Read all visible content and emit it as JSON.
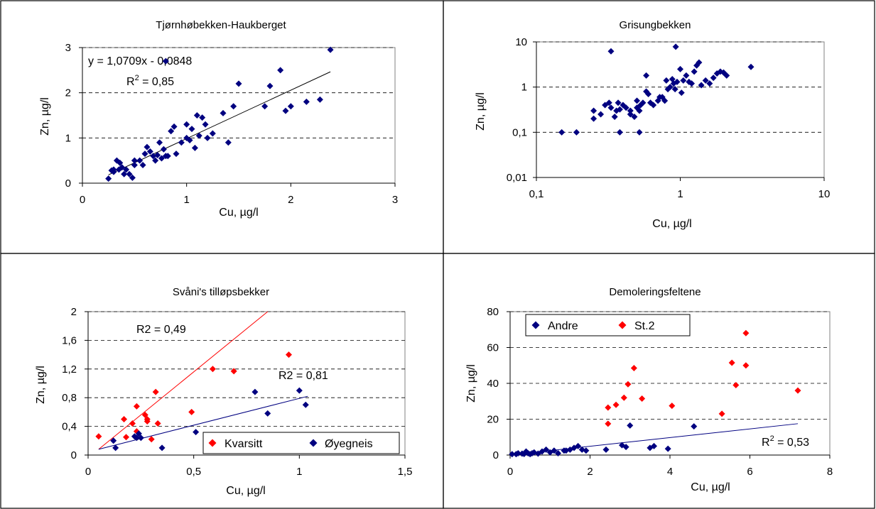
{
  "chart_data": [
    {
      "type": "scatter",
      "title": "Tjørnhøbekken-Haukberget",
      "xlabel": "Cu, µg/l",
      "ylabel": "Zn, µg/l",
      "xlim": [
        0,
        3
      ],
      "ylim": [
        0,
        3
      ],
      "xticks": [
        "0",
        "1",
        "2",
        "3"
      ],
      "yticks": [
        "0",
        "1",
        "2",
        "3"
      ],
      "grid": "horizontal dashed",
      "annotations": [
        "y = 1,0709x - 0,0848",
        "R² = 0,85"
      ],
      "series": [
        {
          "color": "#000080",
          "marker": "diamond",
          "x": [
            0.25,
            0.28,
            0.3,
            0.33,
            0.35,
            0.36,
            0.38,
            0.4,
            0.42,
            0.45,
            0.48,
            0.5,
            0.55,
            0.58,
            0.6,
            0.62,
            0.65,
            0.68,
            0.7,
            0.72,
            0.74,
            0.76,
            0.78,
            0.8,
            0.82,
            0.85,
            0.88,
            0.9,
            0.95,
            1.0,
            1.03,
            1.05,
            1.08,
            1.1,
            1.12,
            1.15,
            1.18,
            1.2,
            1.25,
            1.35,
            1.4,
            1.45,
            1.5,
            0.8,
            1.75,
            1.8,
            1.9,
            1.95,
            2.0,
            2.15,
            2.28,
            2.38,
            1.0,
            0.5,
            0.3
          ],
          "y": [
            0.1,
            0.28,
            0.3,
            0.5,
            0.3,
            0.45,
            0.35,
            0.2,
            0.3,
            0.2,
            0.12,
            0.4,
            0.5,
            0.4,
            0.65,
            0.8,
            0.7,
            0.6,
            0.5,
            0.62,
            0.9,
            0.55,
            0.75,
            0.6,
            0.6,
            1.15,
            1.25,
            0.65,
            0.9,
            1.3,
            0.95,
            1.2,
            0.78,
            1.5,
            1.05,
            1.45,
            1.3,
            1.0,
            1.1,
            1.55,
            0.9,
            1.7,
            2.2,
            2.7,
            1.7,
            2.15,
            2.5,
            1.6,
            1.7,
            1.8,
            1.85,
            2.95,
            1.0,
            0.5,
            0.25
          ]
        }
      ]
    },
    {
      "type": "scatter",
      "title": "Grisungbekken",
      "xlabel": "Cu, µg/l",
      "ylabel": "Zn, µg/l",
      "xscale": "log",
      "yscale": "log",
      "xlim": [
        0.1,
        10
      ],
      "ylim": [
        0.01,
        10
      ],
      "xticks": [
        "0,1",
        "1",
        "10"
      ],
      "yticks": [
        "0,01",
        "0,1",
        "1",
        "10"
      ],
      "grid": "horizontal dashed",
      "series": [
        {
          "color": "#000080",
          "marker": "diamond",
          "x": [
            0.15,
            0.19,
            0.25,
            0.25,
            0.28,
            0.3,
            0.32,
            0.33,
            0.35,
            0.36,
            0.37,
            0.38,
            0.4,
            0.42,
            0.45,
            0.45,
            0.48,
            0.5,
            0.5,
            0.52,
            0.53,
            0.55,
            0.58,
            0.6,
            0.62,
            0.65,
            0.7,
            0.72,
            0.75,
            0.78,
            0.8,
            0.82,
            0.85,
            0.88,
            0.9,
            0.92,
            0.95,
            1.0,
            1.02,
            1.05,
            1.1,
            1.15,
            1.2,
            1.25,
            1.3,
            1.35,
            1.4,
            1.5,
            1.6,
            1.7,
            1.8,
            1.9,
            2.0,
            2.1,
            3.1,
            0.33,
            0.38,
            0.52,
            0.58,
            0.93
          ],
          "y": [
            0.1,
            0.1,
            0.2,
            0.3,
            0.25,
            0.4,
            0.45,
            0.35,
            0.22,
            0.3,
            0.45,
            0.32,
            0.4,
            0.35,
            0.25,
            0.3,
            0.22,
            0.35,
            0.5,
            0.3,
            0.4,
            0.45,
            0.8,
            0.7,
            0.45,
            0.4,
            0.5,
            0.6,
            0.6,
            0.5,
            1.4,
            0.9,
            1.0,
            1.5,
            1.2,
            0.9,
            1.3,
            2.5,
            0.75,
            1.4,
            1.8,
            1.3,
            1.2,
            2.2,
            3.0,
            3.5,
            1.1,
            1.4,
            1.2,
            1.6,
            2.0,
            2.2,
            2.1,
            1.8,
            2.8,
            6.2,
            0.1,
            0.1,
            1.8,
            7.8
          ]
        }
      ]
    },
    {
      "type": "scatter",
      "title": "Svåni's tilløpsbekker",
      "xlabel": "Cu, µg/l",
      "ylabel": "Zn, µg/l",
      "xlim": [
        0,
        1.5
      ],
      "ylim": [
        0,
        2
      ],
      "xticks": [
        "0",
        "0,5",
        "1",
        "1,5"
      ],
      "yticks": [
        "0",
        "0,4",
        "0,8",
        "1,2",
        "1,6",
        "2"
      ],
      "grid": "horizontal dashed",
      "legend_placement": "bottom-right",
      "annotations": [
        "R2 = 0,49",
        "R2 = 0,81"
      ],
      "series": [
        {
          "name": "Kvarsitt",
          "color": "#ff0000",
          "marker": "diamond",
          "x": [
            0.05,
            0.17,
            0.18,
            0.21,
            0.23,
            0.23,
            0.27,
            0.28,
            0.28,
            0.3,
            0.32,
            0.33,
            0.49,
            0.59,
            0.69,
            0.95
          ],
          "y": [
            0.26,
            0.5,
            0.25,
            0.44,
            0.68,
            0.33,
            0.56,
            0.5,
            0.47,
            0.22,
            0.88,
            0.44,
            0.6,
            1.2,
            1.17,
            1.4
          ]
        },
        {
          "name": "Øyegneis",
          "color": "#000080",
          "marker": "diamond",
          "x": [
            0.12,
            0.13,
            0.22,
            0.23,
            0.24,
            0.25,
            0.35,
            0.51,
            0.79,
            0.85,
            1.0,
            1.03
          ],
          "y": [
            0.2,
            0.1,
            0.26,
            0.24,
            0.3,
            0.24,
            0.1,
            0.32,
            0.88,
            0.58,
            0.9,
            0.7
          ]
        }
      ],
      "trendlines": [
        {
          "series": "Kvarsitt",
          "x": [
            0.05,
            0.85
          ],
          "y": [
            0.08,
            2.0
          ]
        },
        {
          "series": "Øyegneis",
          "x": [
            0.05,
            1.04
          ],
          "y": [
            0.08,
            0.82
          ]
        }
      ]
    },
    {
      "type": "scatter",
      "title": "Demoleringsfeltene",
      "xlabel": "Cu, µg/l",
      "ylabel": "Zn, µg/l",
      "xlim": [
        0,
        8
      ],
      "ylim": [
        0,
        80
      ],
      "xticks": [
        "0",
        "2",
        "4",
        "6",
        "8"
      ],
      "yticks": [
        "0",
        "20",
        "40",
        "60",
        "80"
      ],
      "grid": "horizontal dashed",
      "legend_placement": "top-left",
      "annotations": [
        "R² = 0,53"
      ],
      "series": [
        {
          "name": "Andre",
          "color": "#000080",
          "marker": "diamond",
          "x": [
            0.05,
            0.15,
            0.2,
            0.3,
            0.35,
            0.4,
            0.45,
            0.5,
            0.55,
            0.6,
            0.7,
            0.8,
            0.9,
            1.0,
            1.1,
            1.2,
            1.35,
            1.4,
            1.5,
            1.6,
            1.7,
            1.8,
            1.9,
            2.4,
            2.8,
            2.9,
            3.0,
            3.5,
            3.6,
            3.95,
            4.6
          ],
          "y": [
            0.5,
            0.5,
            1.0,
            0.8,
            0.6,
            2.0,
            1.0,
            0.5,
            1.0,
            1.5,
            0.8,
            2.0,
            3.0,
            1.5,
            2.5,
            1.0,
            2.5,
            2.5,
            3.0,
            4.0,
            5.0,
            3.0,
            2.5,
            3.0,
            5.5,
            4.5,
            16.5,
            4.0,
            5.0,
            3.5,
            16.0
          ]
        },
        {
          "name": "St.2",
          "color": "#ff0000",
          "marker": "diamond",
          "x": [
            2.45,
            2.45,
            2.65,
            2.85,
            2.95,
            3.1,
            3.3,
            4.05,
            5.3,
            5.55,
            5.65,
            5.9,
            5.9,
            7.2
          ],
          "y": [
            17.5,
            26.5,
            28.0,
            32.0,
            39.5,
            48.5,
            31.5,
            27.5,
            23.0,
            51.5,
            39.0,
            50.0,
            68.0,
            36.0
          ]
        }
      ],
      "trendlines": [
        {
          "series": "Andre",
          "x": [
            0.1,
            7.2
          ],
          "y": [
            0.3,
            17.5
          ]
        }
      ]
    }
  ],
  "panels": [
    {
      "title": "Tjørnhøbekken-Haukberget",
      "xlabel": "Cu, µg/l",
      "ylabel": "Zn, µg/l",
      "equation": "y = 1,0709x - 0,0848",
      "r2_prefix": "R",
      "r2_sup": "2",
      "r2_value": " = 0,85"
    },
    {
      "title": "Grisungbekken",
      "xlabel": "Cu, µg/l",
      "ylabel": "Zn, µg/l"
    },
    {
      "title": "Svåni's tilløpsbekker",
      "xlabel": "Cu, µg/l",
      "ylabel": "Zn, µg/l",
      "r2_red": "R2 = 0,49",
      "r2_blue": "R2 = 0,81",
      "legend": [
        "Kvarsitt",
        "Øyegneis"
      ]
    },
    {
      "title": "Demoleringsfeltene",
      "xlabel": "Cu, µg/l",
      "ylabel": "Zn, µg/l",
      "r2_prefix": "R",
      "r2_sup": "2",
      "r2_value": " = 0,53",
      "legend": [
        "Andre",
        "St.2"
      ]
    }
  ],
  "colors": {
    "navy": "#000080",
    "red": "#ff0000",
    "grid": "#000000"
  }
}
